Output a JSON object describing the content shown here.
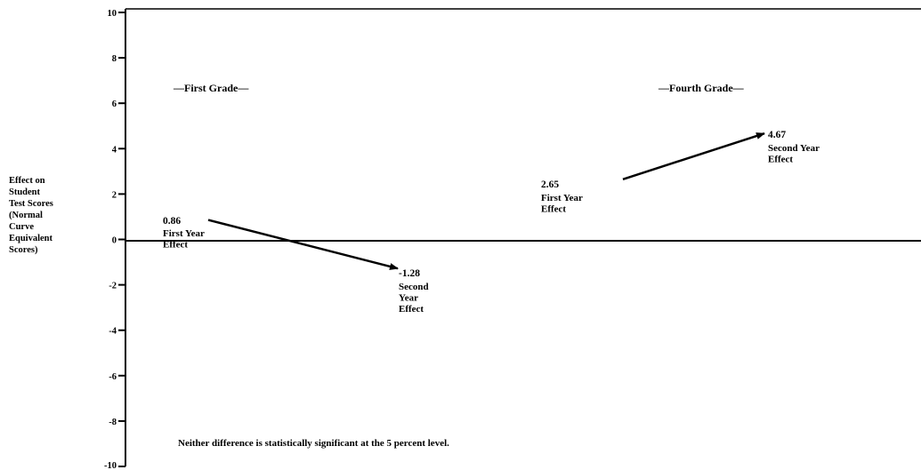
{
  "chart_data": {
    "type": "line",
    "title": "",
    "ylabel_lines": [
      "Effect on",
      "Student",
      "Test Scores",
      "(Normal",
      "Curve",
      "Equivalent",
      "Scores)"
    ],
    "ylim": [
      -10,
      10
    ],
    "yticks": [
      10,
      8,
      6,
      4,
      2,
      0,
      -2,
      -4,
      -6,
      -8,
      -10
    ],
    "grid": false,
    "footnote": "Neither difference is statistically significant at the 5 percent level.",
    "groups": [
      {
        "name": "—First Grade—",
        "points": [
          {
            "value": 0.86,
            "label": "0.86",
            "desc_lines": [
              "First Year",
              "Effect"
            ]
          },
          {
            "value": -1.28,
            "label": "-1.28",
            "desc_lines": [
              "Second",
              "Year",
              "Effect"
            ]
          }
        ]
      },
      {
        "name": "—Fourth Grade—",
        "points": [
          {
            "value": 2.65,
            "label": "2.65",
            "desc_lines": [
              "First Year",
              "Effect"
            ]
          },
          {
            "value": 4.67,
            "label": "4.67",
            "desc_lines": [
              "Second Year",
              "Effect"
            ]
          }
        ]
      }
    ]
  }
}
